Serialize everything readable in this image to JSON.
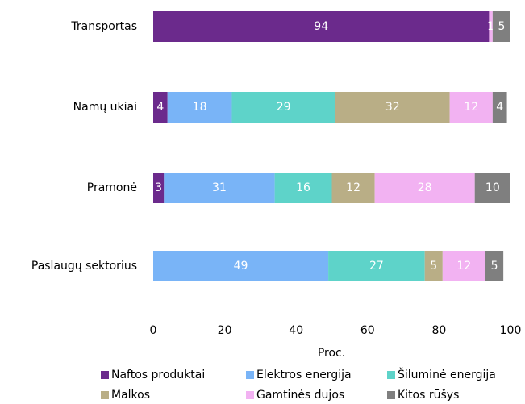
{
  "chart_data": {
    "type": "stacked_bar_horizontal",
    "categories": [
      "Transportas",
      "Namų ūkiai",
      "Pramonė",
      "Paslaugų sektorius"
    ],
    "series": [
      {
        "name": "Naftos produktai",
        "color": "#6b2a8c",
        "values": [
          94,
          4,
          3,
          0
        ]
      },
      {
        "name": "Elektros energija",
        "color": "#79b4f7",
        "values": [
          0,
          18,
          31,
          49
        ]
      },
      {
        "name": "Šiluminė energija",
        "color": "#5ed3c9",
        "values": [
          null,
          29,
          16,
          27
        ]
      },
      {
        "name": "Malkos",
        "color": "#b9ae86",
        "values": [
          null,
          32,
          12,
          5
        ]
      },
      {
        "name": "Gamtinės dujos",
        "color": "#f2b2f2",
        "values": [
          1,
          12,
          28,
          12
        ]
      },
      {
        "name": "Kitos rūšys",
        "color": "#7f7f7f",
        "values": [
          5,
          4,
          10,
          5
        ]
      }
    ],
    "xlabel": "Proc.",
    "xlim": [
      0,
      100
    ],
    "xticks": [
      0,
      20,
      40,
      60,
      80,
      100
    ]
  }
}
